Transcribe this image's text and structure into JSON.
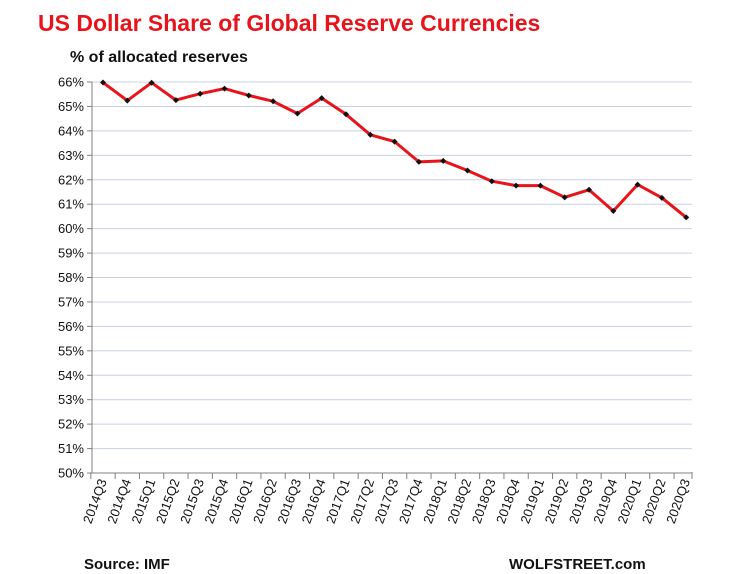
{
  "colors": {
    "title": "#e8141b",
    "line": "#e8141b",
    "marker": "#111111",
    "grid": "#c9d0e6",
    "axis": "#808080",
    "text": "#111111"
  },
  "chart_data": {
    "type": "line",
    "title": "US Dollar Share of Global  Reserve Currencies",
    "subtitle": "% of allocated reserves",
    "source": "Source: IMF",
    "credit": "WOLFSTREET.com",
    "categories": [
      "2014Q3",
      "2014Q4",
      "2015Q1",
      "2015Q2",
      "2015Q3",
      "2015Q4",
      "2016Q1",
      "2016Q2",
      "2016Q3",
      "2016Q4",
      "2017Q1",
      "2017Q2",
      "2017Q3",
      "2017Q4",
      "2018Q1",
      "2018Q2",
      "2018Q3",
      "2018Q4",
      "2019Q1",
      "2019Q2",
      "2019Q3",
      "2019Q4",
      "2020Q1",
      "2020Q2",
      "2020Q3"
    ],
    "series": [
      {
        "values": [
          65.98,
          65.24,
          65.97,
          65.26,
          65.52,
          65.73,
          65.45,
          65.21,
          64.71,
          65.34,
          64.68,
          63.84,
          63.56,
          62.73,
          62.77,
          62.38,
          61.94,
          61.76,
          61.76,
          61.28,
          61.59,
          60.72,
          61.8,
          61.26,
          60.46
        ]
      }
    ],
    "y_tick_labels": [
      "50%",
      "51%",
      "52%",
      "53%",
      "54%",
      "55%",
      "56%",
      "57%",
      "58%",
      "59%",
      "60%",
      "61%",
      "62%",
      "63%",
      "64%",
      "65%",
      "66%"
    ],
    "ylim": [
      50,
      66
    ],
    "grid": true,
    "legend": "none"
  }
}
